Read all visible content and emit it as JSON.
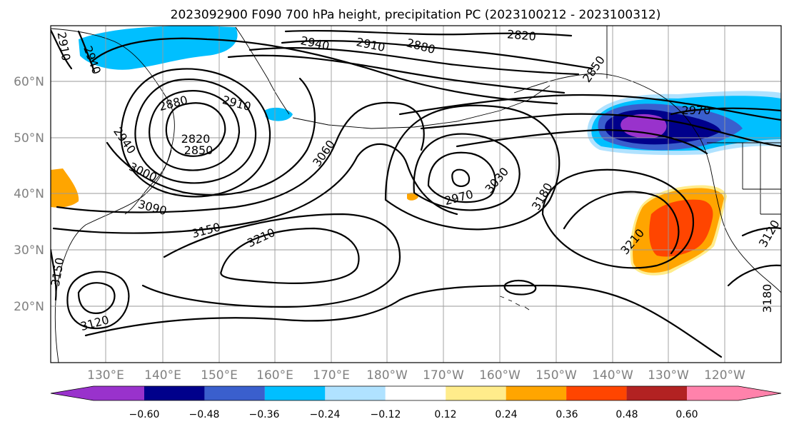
{
  "title": "2023092900 F090 700 hPa height, precipitation PC (2023100212 - 2023100312)",
  "map": {
    "lon_labels": [
      "130°E",
      "140°E",
      "150°E",
      "160°E",
      "170°E",
      "180°W",
      "170°W",
      "160°W",
      "150°W",
      "140°W",
      "130°W",
      "120°W"
    ],
    "lat_labels": [
      "20°N",
      "30°N",
      "40°N",
      "50°N",
      "60°N"
    ],
    "contour_labels": [
      {
        "text": "2940"
      },
      {
        "text": "2910"
      },
      {
        "text": "2880"
      },
      {
        "text": "2820"
      },
      {
        "text": "2850"
      },
      {
        "text": "2970"
      },
      {
        "text": "2880"
      },
      {
        "text": "2910"
      },
      {
        "text": "2820"
      },
      {
        "text": "2850"
      },
      {
        "text": "2940"
      },
      {
        "text": "3000"
      },
      {
        "text": "3090"
      },
      {
        "text": "3060"
      },
      {
        "text": "3150"
      },
      {
        "text": "3210"
      },
      {
        "text": "2970"
      },
      {
        "text": "3030"
      },
      {
        "text": "3180"
      },
      {
        "text": "3210"
      },
      {
        "text": "3120"
      },
      {
        "text": "3150"
      },
      {
        "text": "3120"
      },
      {
        "text": "3180"
      },
      {
        "text": "2910"
      },
      {
        "text": "2940"
      }
    ]
  },
  "colorbar": {
    "tick_labels": [
      "−0.60",
      "−0.48",
      "−0.36",
      "−0.24",
      "−0.12",
      "0.12",
      "0.24",
      "0.36",
      "0.48",
      "0.60"
    ],
    "colors": [
      "#9932cc",
      "#00008b",
      "#3a5fcd",
      "#00bfff",
      "#b0e2ff",
      "#ffffff",
      "#ffec8b",
      "#ffa500",
      "#ff4500",
      "#b22222",
      "#ff82ab"
    ]
  }
}
